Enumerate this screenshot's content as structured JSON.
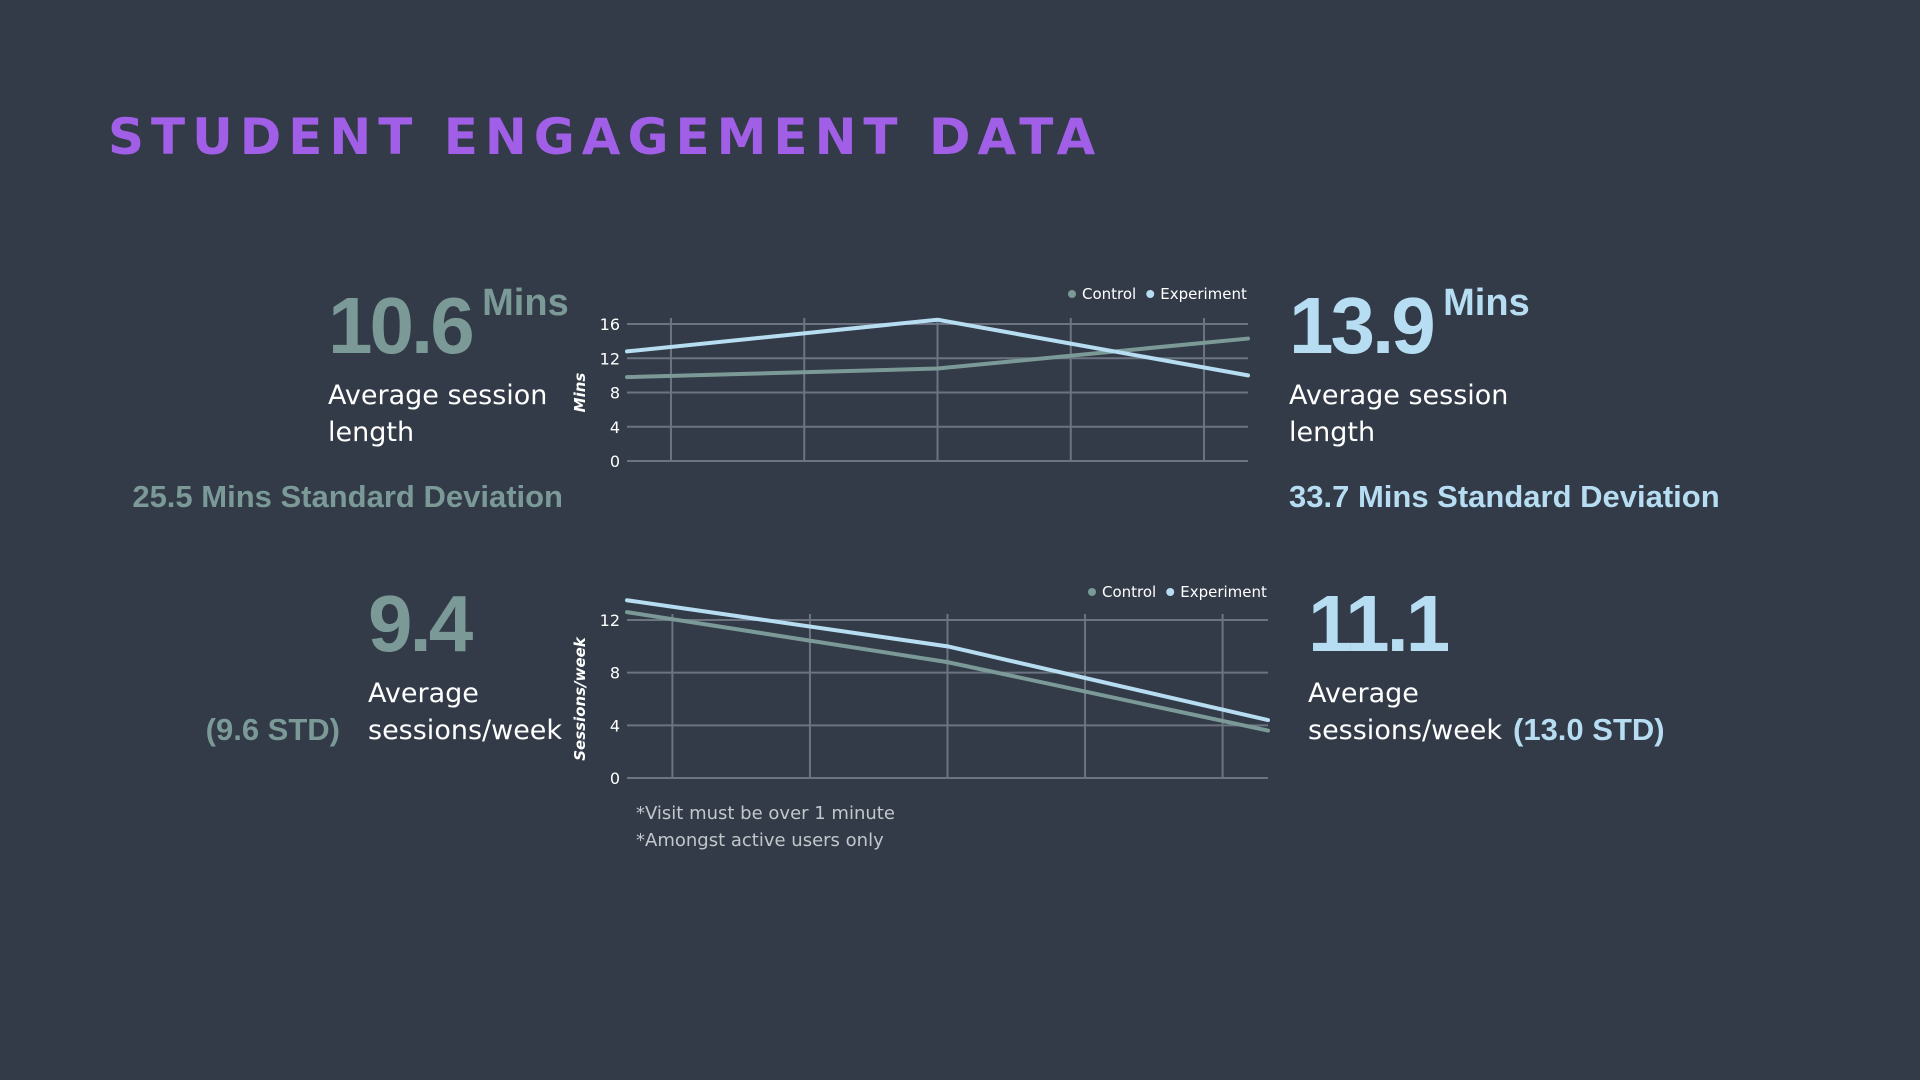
{
  "title": "STUDENT ENGAGEMENT DATA",
  "colors": {
    "title": "#a05fe6",
    "background": "#323b47",
    "control": "#7b9a97",
    "experiment": "#b7ddf2",
    "grid": "#6b7480"
  },
  "session_length": {
    "control": {
      "value": "10.6",
      "unit": "Mins",
      "label": "Average session length",
      "label_line1": "Average session",
      "label_line2": "length",
      "std": "25.5 Mins Standard Deviation"
    },
    "experiment": {
      "value": "13.9",
      "unit": "Mins",
      "label": "Average session length",
      "label_line1": "Average session",
      "label_line2": "length",
      "std": "33.7 Mins Standard Deviation"
    }
  },
  "sessions_per_week": {
    "control": {
      "value": "9.4",
      "label_line1": "Average",
      "label_line2": "sessions/week",
      "std": "(9.6 STD)"
    },
    "experiment": {
      "value": "11.1",
      "label_line1": "Average",
      "label_line2": "sessions/week",
      "std": "(13.0 STD)"
    }
  },
  "footnotes": [
    "*Visit must be over 1 minute",
    "*Amongst active users only"
  ],
  "chart_data": [
    {
      "type": "line",
      "title": "",
      "xlabel": "",
      "ylabel": "Mins",
      "ylim": [
        0,
        16
      ],
      "yticks": [
        0,
        4,
        8,
        12,
        16
      ],
      "x": [
        0,
        1,
        2,
        3,
        4
      ],
      "xlim": [
        -0.33,
        4.33
      ],
      "grid": true,
      "legend": "top-right",
      "series": [
        {
          "name": "Control",
          "color": "#7b9a97",
          "x": [
            -0.33,
            2,
            4.33
          ],
          "values": [
            9.8,
            10.8,
            14.3
          ]
        },
        {
          "name": "Experiment",
          "color": "#b7ddf2",
          "x": [
            -0.33,
            2,
            4.33
          ],
          "values": [
            12.8,
            16.5,
            10.0
          ]
        }
      ]
    },
    {
      "type": "line",
      "title": "",
      "xlabel": "",
      "ylabel": "Sessions/week",
      "ylim": [
        0,
        12
      ],
      "yticks": [
        0,
        4,
        8,
        12
      ],
      "x": [
        0,
        1,
        2,
        3,
        4
      ],
      "xlim": [
        -0.33,
        4.33
      ],
      "grid": true,
      "legend": "top-right",
      "series": [
        {
          "name": "Control",
          "color": "#7b9a97",
          "x": [
            -0.33,
            2,
            4.33
          ],
          "values": [
            12.6,
            8.8,
            3.6
          ]
        },
        {
          "name": "Experiment",
          "color": "#b7ddf2",
          "x": [
            -0.33,
            2,
            4.33
          ],
          "values": [
            13.5,
            10.0,
            4.4
          ]
        }
      ]
    }
  ]
}
